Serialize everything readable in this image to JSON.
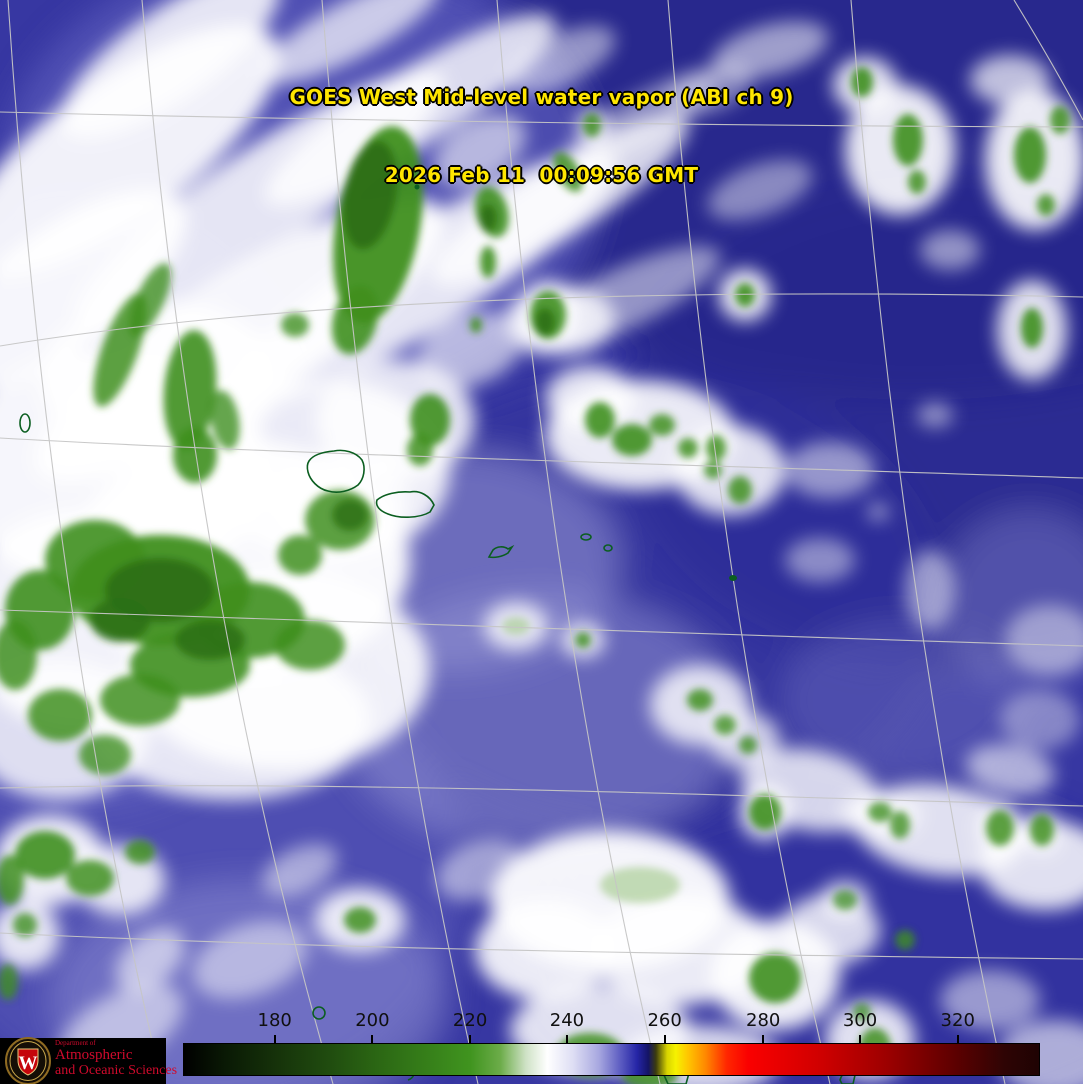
{
  "title": {
    "line1": "GOES West Mid-level water vapor (ABI ch 9)",
    "line2": "2026 Feb 11  00:09:56 GMT",
    "text_color": "#ffe600"
  },
  "colorbar": {
    "tick_labels": [
      "180",
      "200",
      "220",
      "240",
      "260",
      "280",
      "300",
      "320"
    ],
    "tick_positions_pct": [
      10.7,
      22.1,
      33.5,
      44.8,
      56.2,
      67.7,
      79.0,
      90.4
    ],
    "label_color": "#101010",
    "gradient_stops": [
      {
        "pct": 0,
        "color": "#000000"
      },
      {
        "pct": 5,
        "color": "#0a1a05"
      },
      {
        "pct": 11,
        "color": "#16330a"
      },
      {
        "pct": 17,
        "color": "#204c0f"
      },
      {
        "pct": 22,
        "color": "#2a6413"
      },
      {
        "pct": 28,
        "color": "#357d19"
      },
      {
        "pct": 33.5,
        "color": "#40941f"
      },
      {
        "pct": 37,
        "color": "#6cac49"
      },
      {
        "pct": 40,
        "color": "#cfe2c6"
      },
      {
        "pct": 42.5,
        "color": "#ffffff"
      },
      {
        "pct": 45.5,
        "color": "#dedef4"
      },
      {
        "pct": 48.5,
        "color": "#a8a8e0"
      },
      {
        "pct": 51,
        "color": "#5e5ec2"
      },
      {
        "pct": 53,
        "color": "#2525a6"
      },
      {
        "pct": 54.3,
        "color": "#141466"
      },
      {
        "pct": 55.2,
        "color": "#3c3c0e"
      },
      {
        "pct": 56.5,
        "color": "#d8d400"
      },
      {
        "pct": 57.5,
        "color": "#f6f200"
      },
      {
        "pct": 59,
        "color": "#ffc400"
      },
      {
        "pct": 61,
        "color": "#ff8800"
      },
      {
        "pct": 63.5,
        "color": "#ff2600"
      },
      {
        "pct": 66,
        "color": "#fa0000"
      },
      {
        "pct": 74,
        "color": "#d20000"
      },
      {
        "pct": 82,
        "color": "#9e0000"
      },
      {
        "pct": 90,
        "color": "#5e0000"
      },
      {
        "pct": 96,
        "color": "#2e0404"
      },
      {
        "pct": 100,
        "color": "#1f0303"
      }
    ]
  },
  "logo": {
    "department": "Department of",
    "line1": "Atmospheric",
    "line2": "and Oceanic Sciences",
    "text_color": "#cf0a2c",
    "background": "#000000",
    "crest_letter": "W",
    "crest_shield_color": "#c5050c"
  },
  "scene": {
    "colors": {
      "ocean_base": "#3737a2",
      "ocean_dark": "#26268c",
      "ocean_mid": "#32329c",
      "ocean_light": "#5d5dbc",
      "haze": "#9a9ad6",
      "cloud": "#ffffff",
      "cold_cloud": "#3f8f1f",
      "cold_cloud_dark": "#2c6e14",
      "cold_cloud_pale": "#abcf97",
      "coastline": "#0b5e20",
      "graticule": "#c6c6c6"
    }
  }
}
